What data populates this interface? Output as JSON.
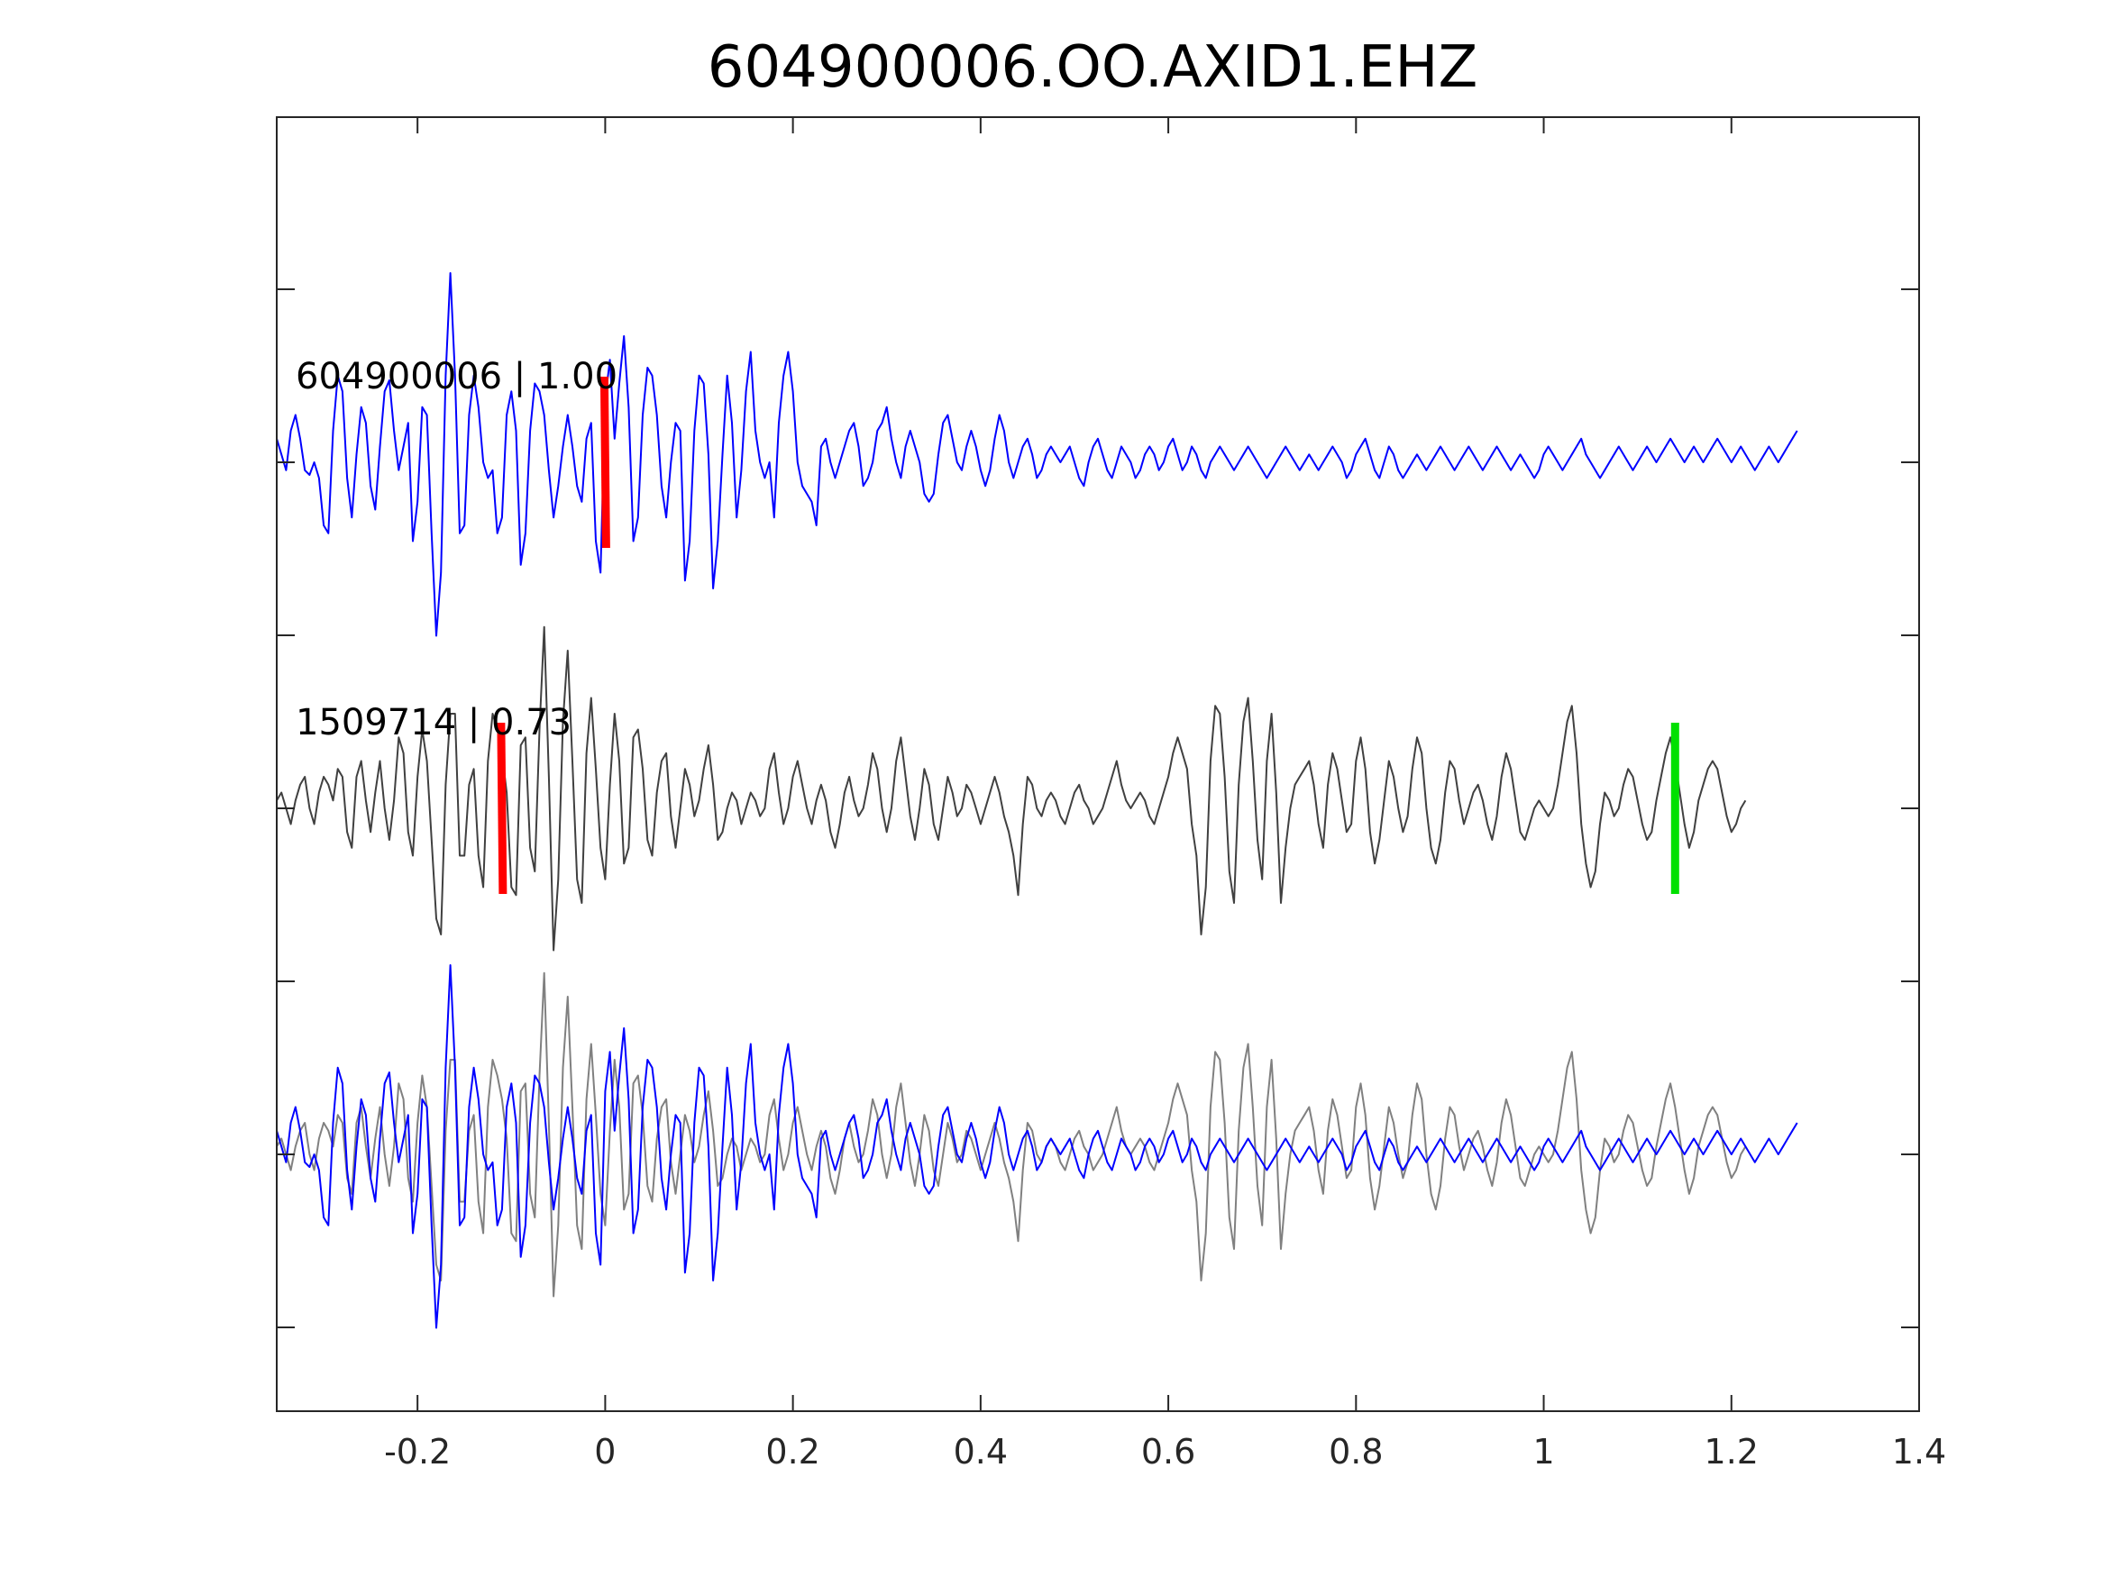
{
  "chart_data": {
    "type": "line",
    "title": "604900006.OO.AXID1.EHZ",
    "xlabel": "",
    "ylabel": "",
    "xlim": [
      -0.35,
      1.4
    ],
    "x_ticks": [
      "-0.2",
      "0",
      "0.2",
      "0.4",
      "0.6",
      "0.8",
      "1",
      "1.2",
      "1.4"
    ],
    "x_tick_values": [
      -0.2,
      0,
      0.2,
      0.4,
      0.6,
      0.8,
      1.0,
      1.2,
      1.4
    ],
    "grid": false,
    "dt": 0.005,
    "colors": {
      "template": "#0000ff",
      "match": "#404040",
      "overlay_match": "#808080",
      "pick_red": "#ff0000",
      "pick_green": "#00e000",
      "axis": "#262626"
    },
    "traces": [
      {
        "label": "604900006 | 1.00",
        "color": "#0000ff",
        "pick_times": [
          0.0
        ],
        "values": [
          0.15,
          0.05,
          -0.05,
          0.2,
          0.3,
          0.15,
          -0.05,
          -0.08,
          0.0,
          -0.1,
          -0.4,
          -0.45,
          0.2,
          0.55,
          0.45,
          -0.1,
          -0.35,
          0.05,
          0.35,
          0.25,
          -0.15,
          -0.3,
          0.1,
          0.45,
          0.52,
          0.2,
          -0.05,
          0.1,
          0.25,
          -0.5,
          -0.25,
          0.35,
          0.3,
          -0.45,
          -1.1,
          -0.7,
          0.55,
          1.2,
          0.55,
          -0.45,
          -0.4,
          0.3,
          0.55,
          0.35,
          0.0,
          -0.1,
          -0.05,
          -0.45,
          -0.35,
          0.3,
          0.45,
          0.2,
          -0.65,
          -0.45,
          0.2,
          0.5,
          0.45,
          0.3,
          -0.05,
          -0.35,
          -0.15,
          0.1,
          0.3,
          0.1,
          -0.15,
          -0.25,
          0.15,
          0.25,
          -0.5,
          -0.7,
          0.4,
          0.65,
          0.15,
          0.5,
          0.8,
          0.35,
          -0.5,
          -0.35,
          0.3,
          0.6,
          0.55,
          0.3,
          -0.15,
          -0.35,
          0.0,
          0.25,
          0.2,
          -0.75,
          -0.5,
          0.2,
          0.55,
          0.5,
          0.05,
          -0.8,
          -0.5,
          0.05,
          0.55,
          0.25,
          -0.35,
          -0.05,
          0.45,
          0.7,
          0.2,
          0.0,
          -0.1,
          0.0,
          -0.35,
          0.25,
          0.55,
          0.7,
          0.45,
          0.0,
          -0.15,
          -0.2,
          -0.25,
          -0.4,
          0.1,
          0.15,
          0.0,
          -0.1,
          0.0,
          0.1,
          0.2,
          0.25,
          0.1,
          -0.15,
          -0.1,
          0.0,
          0.2,
          0.25,
          0.35,
          0.15,
          0.0,
          -0.1,
          0.1,
          0.2,
          0.1,
          0.0,
          -0.2,
          -0.25,
          -0.2,
          0.05,
          0.25,
          0.3,
          0.15,
          0.0,
          -0.05,
          0.1,
          0.2,
          0.1,
          -0.05,
          -0.15,
          -0.05,
          0.15,
          0.3,
          0.2,
          0.0,
          -0.1,
          0.0,
          0.1,
          0.15,
          0.05,
          -0.1,
          -0.05,
          0.05,
          0.1,
          0.05,
          0.0,
          0.05,
          0.1,
          0.0,
          -0.1,
          -0.15,
          0.0,
          0.1,
          0.15,
          0.05,
          -0.05,
          -0.1,
          0.0,
          0.1,
          0.05,
          0.0,
          -0.1,
          -0.05,
          0.05,
          0.1,
          0.05,
          -0.05,
          0.0,
          0.1,
          0.15,
          0.05,
          -0.05,
          0.0,
          0.1,
          0.05,
          -0.05,
          -0.1,
          0.0,
          0.05,
          0.1,
          0.05,
          0.0,
          -0.05,
          0.0,
          0.05,
          0.1,
          0.05,
          0.0,
          -0.05,
          -0.1,
          -0.05,
          0.0,
          0.05,
          0.1,
          0.05,
          0.0,
          -0.05,
          0.0,
          0.05,
          0.0,
          -0.05,
          0.0,
          0.05,
          0.1,
          0.05,
          0.0,
          -0.1,
          -0.05,
          0.05,
          0.1,
          0.15,
          0.05,
          -0.05,
          -0.1,
          0.0,
          0.1,
          0.05,
          -0.05,
          -0.1,
          -0.05,
          0.0,
          0.05,
          0.0,
          -0.05,
          0.0,
          0.05,
          0.1,
          0.05,
          0.0,
          -0.05,
          0.0,
          0.05,
          0.1,
          0.05,
          0.0,
          -0.05,
          0.0,
          0.05,
          0.1,
          0.05,
          0.0,
          -0.05,
          0.0,
          0.05,
          0.0,
          -0.05,
          -0.1,
          -0.05,
          0.05,
          0.1,
          0.05,
          0.0,
          -0.05,
          0.0,
          0.05,
          0.1,
          0.15,
          0.05,
          0.0,
          -0.05,
          -0.1,
          -0.05,
          0.0,
          0.05,
          0.1,
          0.05,
          0.0,
          -0.05,
          0.0,
          0.05,
          0.1,
          0.05,
          0.0,
          0.05,
          0.1,
          0.15,
          0.1,
          0.05,
          0.0,
          0.05,
          0.1,
          0.05,
          0.0,
          0.05,
          0.1,
          0.15,
          0.1,
          0.05,
          0.0,
          0.05,
          0.1,
          0.05,
          0.0,
          -0.05,
          0.0,
          0.05,
          0.1,
          0.05,
          0.0,
          0.05,
          0.1,
          0.15,
          0.2
        ]
      },
      {
        "label": "1509714 | 0.73",
        "color": "#404040",
        "pick_times": [
          -0.11,
          1.14
        ],
        "values": [
          0.05,
          0.1,
          0.0,
          -0.1,
          0.05,
          0.15,
          0.2,
          0.0,
          -0.1,
          0.1,
          0.2,
          0.15,
          0.05,
          0.25,
          0.2,
          -0.15,
          -0.25,
          0.2,
          0.3,
          0.05,
          -0.15,
          0.1,
          0.3,
          0.0,
          -0.2,
          0.05,
          0.45,
          0.35,
          -0.15,
          -0.3,
          0.2,
          0.5,
          0.3,
          -0.2,
          -0.7,
          -0.8,
          0.15,
          0.6,
          0.6,
          -0.3,
          -0.3,
          0.15,
          0.25,
          -0.3,
          -0.5,
          0.3,
          0.6,
          0.5,
          0.35,
          0.1,
          -0.5,
          -0.55,
          0.4,
          0.45,
          -0.25,
          -0.4,
          0.5,
          1.15,
          0.2,
          -0.9,
          -0.45,
          0.55,
          1.0,
          0.3,
          -0.45,
          -0.6,
          0.35,
          0.7,
          0.25,
          -0.25,
          -0.45,
          0.15,
          0.6,
          0.3,
          -0.35,
          -0.25,
          0.45,
          0.5,
          0.25,
          -0.2,
          -0.3,
          0.1,
          0.3,
          0.35,
          -0.05,
          -0.25,
          0.0,
          0.25,
          0.15,
          -0.05,
          0.05,
          0.25,
          0.4,
          0.15,
          -0.2,
          -0.15,
          0.0,
          0.1,
          0.05,
          -0.1,
          0.0,
          0.1,
          0.05,
          -0.05,
          0.0,
          0.25,
          0.35,
          0.1,
          -0.1,
          0.0,
          0.2,
          0.3,
          0.15,
          0.0,
          -0.1,
          0.05,
          0.15,
          0.05,
          -0.15,
          -0.25,
          -0.1,
          0.1,
          0.2,
          0.05,
          -0.05,
          0.0,
          0.15,
          0.35,
          0.25,
          0.0,
          -0.15,
          0.0,
          0.3,
          0.45,
          0.2,
          -0.05,
          -0.2,
          0.0,
          0.25,
          0.15,
          -0.1,
          -0.2,
          0.0,
          0.2,
          0.1,
          -0.05,
          0.0,
          0.15,
          0.1,
          0.0,
          -0.1,
          0.0,
          0.1,
          0.2,
          0.1,
          -0.05,
          -0.15,
          -0.3,
          -0.55,
          -0.1,
          0.2,
          0.15,
          0.0,
          -0.05,
          0.05,
          0.1,
          0.05,
          -0.05,
          -0.1,
          0.0,
          0.1,
          0.15,
          0.05,
          0.0,
          -0.1,
          -0.05,
          0.0,
          0.1,
          0.2,
          0.3,
          0.15,
          0.05,
          0.0,
          0.05,
          0.1,
          0.05,
          -0.05,
          -0.1,
          0.0,
          0.1,
          0.2,
          0.35,
          0.45,
          0.35,
          0.25,
          -0.1,
          -0.3,
          -0.8,
          -0.5,
          0.3,
          0.65,
          0.6,
          0.2,
          -0.4,
          -0.6,
          0.15,
          0.55,
          0.7,
          0.3,
          -0.2,
          -0.45,
          0.3,
          0.6,
          0.1,
          -0.6,
          -0.25,
          0.0,
          0.15,
          0.2,
          0.25,
          0.3,
          0.15,
          -0.1,
          -0.25,
          0.15,
          0.35,
          0.25,
          0.05,
          -0.15,
          -0.1,
          0.3,
          0.45,
          0.25,
          -0.15,
          -0.35,
          -0.2,
          0.05,
          0.3,
          0.2,
          0.0,
          -0.15,
          -0.05,
          0.25,
          0.45,
          0.35,
          0.0,
          -0.25,
          -0.35,
          -0.2,
          0.1,
          0.3,
          0.25,
          0.05,
          -0.1,
          0.0,
          0.1,
          0.15,
          0.05,
          -0.1,
          -0.2,
          -0.05,
          0.2,
          0.35,
          0.25,
          0.05,
          -0.15,
          -0.2,
          -0.1,
          0.0,
          0.05,
          0.0,
          -0.05,
          0.0,
          0.15,
          0.35,
          0.55,
          0.65,
          0.35,
          -0.1,
          -0.35,
          -0.5,
          -0.4,
          -0.1,
          0.1,
          0.05,
          -0.05,
          0.0,
          0.15,
          0.25,
          0.2,
          0.05,
          -0.1,
          -0.2,
          -0.15,
          0.05,
          0.2,
          0.35,
          0.45,
          0.3,
          0.1,
          -0.1,
          -0.25,
          -0.15,
          0.05,
          0.15,
          0.25,
          0.3,
          0.25,
          0.1,
          -0.05,
          -0.15,
          -0.1,
          0.0,
          0.05
        ]
      },
      {
        "label": "",
        "overlay": true,
        "series": [
          {
            "color": "#808080",
            "source_trace": 1
          },
          {
            "color": "#0000ff",
            "source_trace": 0
          }
        ]
      }
    ]
  }
}
